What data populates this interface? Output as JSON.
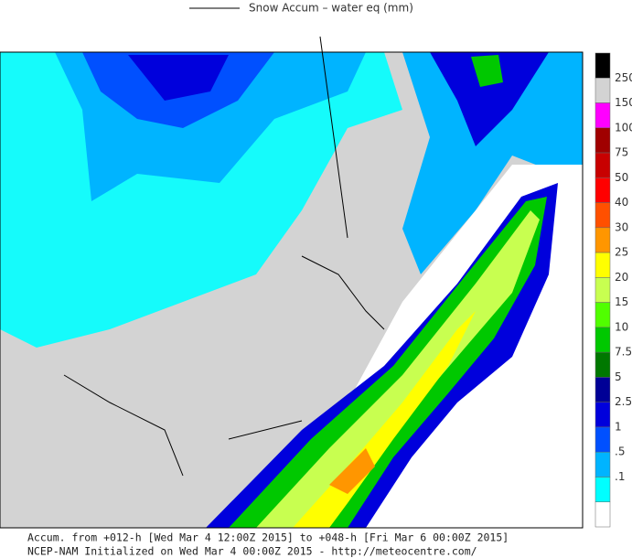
{
  "title": "Snow Accum – water eq (mm)",
  "colorbar": {
    "labels": [
      "250",
      "150",
      "100",
      "75",
      "50",
      "40",
      "30",
      "25",
      "20",
      "15",
      "10",
      "7.5",
      "5",
      "2.5",
      "1",
      ".5",
      ".1"
    ],
    "colors": [
      "#000000",
      "#d3d3d3",
      "#ff00ff",
      "#a00000",
      "#c80000",
      "#ff0000",
      "#ff5000",
      "#ff9600",
      "#ffff00",
      "#c8ff50",
      "#50ff00",
      "#00c800",
      "#007800",
      "#000096",
      "#0000dc",
      "#0050ff",
      "#00b4ff",
      "#00ffff",
      "#ffffff"
    ]
  },
  "footer": [
    "Accum. from +012-h [Wed Mar 4 12:00Z 2015] to +048-h [Fri Mar 6 00:00Z 2015]",
    "NCEP-NAM Initialized on Wed Mar 4 00:00Z 2015 - http://meteocentre.com/"
  ]
}
